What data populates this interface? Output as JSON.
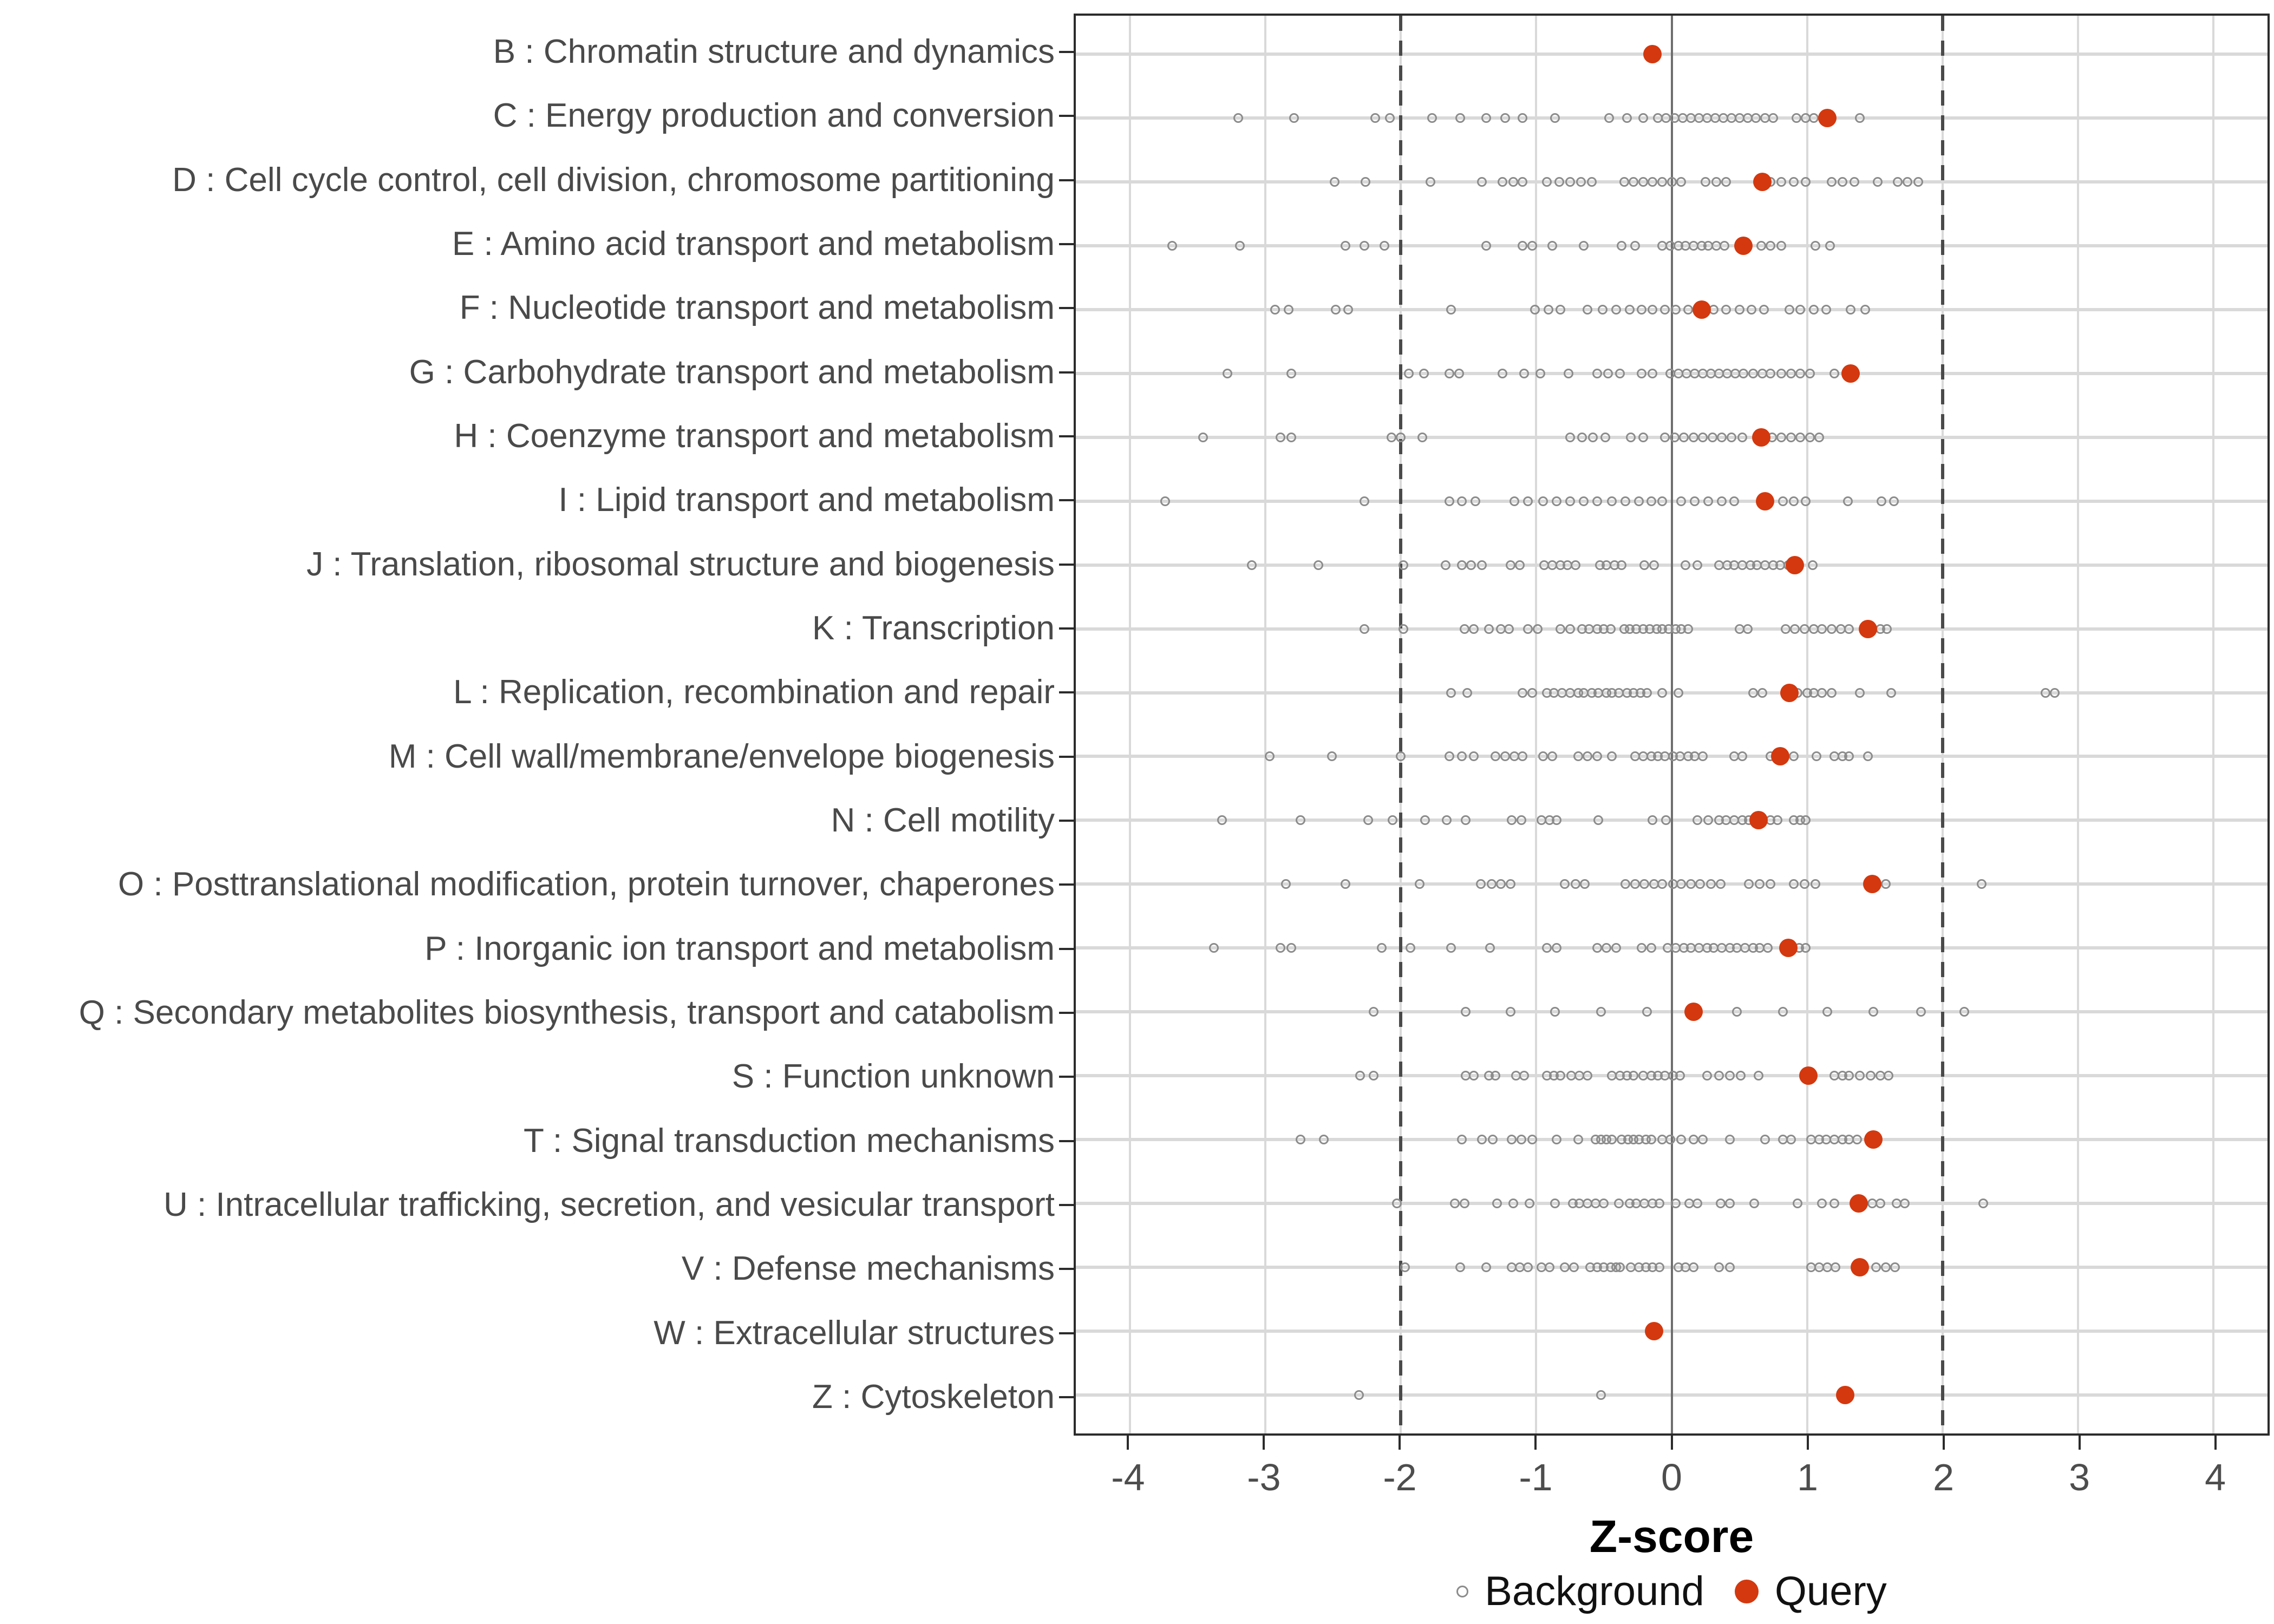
{
  "chart_data": {
    "type": "scatter",
    "title": "",
    "xlabel": "Z-score",
    "ylabel": "",
    "xlim": [
      -4.4,
      4.4
    ],
    "x_ticks": [
      -4,
      -3,
      -2,
      -1,
      0,
      1,
      2,
      3,
      4
    ],
    "guides": {
      "zero_line_at": 0,
      "dashed_lines_at": [
        -2,
        2
      ]
    },
    "grid": true,
    "legend_position": "bottom",
    "legend": [
      {
        "label": "Background",
        "marker": "open-circle",
        "color": "#8c8c8c"
      },
      {
        "label": "Query",
        "marker": "filled-circle",
        "color": "#d4380e"
      }
    ],
    "colors": {
      "query": "#d4380e",
      "background_stroke": "#8c8c8c",
      "grid_light": "#d9d9d9",
      "dashed_guide": "#4a4a4a",
      "zero_guide": "#6e6e6e",
      "axis": "#2b2b2b",
      "tick_text": "#4d4d4d",
      "category_text": "#4a4a4a"
    },
    "categories": [
      {
        "label": "B : Chromatin structure and dynamics",
        "query": -0.14,
        "background": []
      },
      {
        "label": "C : Energy production and conversion",
        "query": 1.15,
        "background": [
          -3.2,
          -2.79,
          -2.19,
          -2.08,
          -1.77,
          -1.56,
          -1.37,
          -1.23,
          -1.1,
          -0.86,
          -0.46,
          -0.33,
          -0.21,
          -0.1,
          -0.04,
          0.02,
          0.08,
          0.14,
          0.2,
          0.26,
          0.32,
          0.38,
          0.44,
          0.5,
          0.56,
          0.62,
          0.69,
          0.75,
          0.92,
          0.99,
          1.05,
          1.39
        ]
      },
      {
        "label": "D : Cell cycle control, cell division, chromosome partitioning",
        "query": 0.67,
        "background": [
          -2.49,
          -2.26,
          -1.78,
          -1.4,
          -1.25,
          -1.17,
          -1.1,
          -0.92,
          -0.83,
          -0.75,
          -0.67,
          -0.59,
          -0.35,
          -0.28,
          -0.21,
          -0.14,
          -0.07,
          0.0,
          0.07,
          0.25,
          0.33,
          0.4,
          0.73,
          0.81,
          0.9,
          0.99,
          1.18,
          1.26,
          1.35,
          1.52,
          1.67,
          1.74,
          1.82
        ]
      },
      {
        "label": "E : Amino acid transport and metabolism",
        "query": 0.53,
        "background": [
          -3.69,
          -3.19,
          -2.41,
          -2.27,
          -2.12,
          -1.37,
          -1.1,
          -1.03,
          -0.88,
          -0.65,
          -0.37,
          -0.27,
          -0.07,
          -0.01,
          0.05,
          0.1,
          0.16,
          0.22,
          0.27,
          0.33,
          0.39,
          0.66,
          0.73,
          0.81,
          1.06,
          1.17
        ]
      },
      {
        "label": "F : Nucleotide transport and metabolism",
        "query": 0.22,
        "background": [
          -2.93,
          -2.83,
          -2.48,
          -2.39,
          -1.63,
          -1.01,
          -0.91,
          -0.82,
          -0.62,
          -0.51,
          -0.41,
          -0.31,
          -0.22,
          -0.14,
          -0.05,
          0.03,
          0.12,
          0.31,
          0.4,
          0.5,
          0.59,
          0.68,
          0.87,
          0.95,
          1.05,
          1.14,
          1.32,
          1.43
        ]
      },
      {
        "label": "G : Carbohydrate transport and metabolism",
        "query": 1.32,
        "background": [
          -3.28,
          -2.81,
          -1.94,
          -1.83,
          -1.64,
          -1.57,
          -1.25,
          -1.09,
          -0.97,
          -0.76,
          -0.55,
          -0.47,
          -0.38,
          -0.22,
          -0.14,
          -0.01,
          0.05,
          0.11,
          0.17,
          0.23,
          0.29,
          0.35,
          0.41,
          0.47,
          0.53,
          0.6,
          0.67,
          0.73,
          0.81,
          0.88,
          0.95,
          1.02,
          1.2
        ]
      },
      {
        "label": "H : Coenzyme transport and metabolism",
        "query": 0.66,
        "background": [
          -3.46,
          -2.89,
          -2.81,
          -2.07,
          -2.0,
          -1.84,
          -0.75,
          -0.66,
          -0.58,
          -0.49,
          -0.3,
          -0.21,
          -0.05,
          0.02,
          0.09,
          0.16,
          0.23,
          0.3,
          0.37,
          0.44,
          0.52,
          0.74,
          0.81,
          0.88,
          0.95,
          1.02,
          1.09
        ]
      },
      {
        "label": "I : Lipid transport and metabolism",
        "query": 0.69,
        "background": [
          -3.74,
          -2.27,
          -1.64,
          -1.55,
          -1.45,
          -1.16,
          -1.06,
          -0.95,
          -0.85,
          -0.75,
          -0.65,
          -0.55,
          -0.44,
          -0.34,
          -0.24,
          -0.15,
          -0.07,
          0.07,
          0.17,
          0.27,
          0.37,
          0.46,
          0.82,
          0.9,
          0.99,
          1.3,
          1.55,
          1.64
        ]
      },
      {
        "label": "J : Translation, ribosomal structure and biogenesis",
        "query": 0.91,
        "background": [
          -3.1,
          -2.61,
          -1.98,
          -1.67,
          -1.55,
          -1.48,
          -1.4,
          -1.19,
          -1.12,
          -0.94,
          -0.88,
          -0.82,
          -0.77,
          -0.71,
          -0.53,
          -0.48,
          -0.42,
          -0.37,
          -0.2,
          -0.13,
          0.1,
          0.19,
          0.35,
          0.41,
          0.46,
          0.52,
          0.58,
          0.63,
          0.69,
          0.75,
          0.8,
          0.86,
          1.04
        ]
      },
      {
        "label": "K : Transcription",
        "query": 1.45,
        "background": [
          -2.27,
          -1.98,
          -1.53,
          -1.46,
          -1.35,
          -1.26,
          -1.2,
          -1.06,
          -0.99,
          -0.82,
          -0.75,
          -0.66,
          -0.61,
          -0.55,
          -0.5,
          -0.45,
          -0.35,
          -0.31,
          -0.26,
          -0.21,
          -0.16,
          -0.11,
          -0.07,
          -0.02,
          0.03,
          0.07,
          0.12,
          0.5,
          0.56,
          0.84,
          0.91,
          0.98,
          1.05,
          1.11,
          1.18,
          1.25,
          1.31,
          1.54,
          1.59
        ]
      },
      {
        "label": "L : Replication, recombination and repair",
        "query": 0.87,
        "background": [
          -1.63,
          -1.51,
          -1.1,
          -1.03,
          -0.92,
          -0.87,
          -0.81,
          -0.75,
          -0.69,
          -0.65,
          -0.59,
          -0.54,
          -0.48,
          -0.44,
          -0.39,
          -0.33,
          -0.28,
          -0.23,
          -0.18,
          -0.07,
          0.05,
          0.6,
          0.67,
          0.93,
          1.0,
          1.05,
          1.11,
          1.18,
          1.39,
          1.62,
          2.76,
          2.83
        ]
      },
      {
        "label": "M : Cell wall/membrane/envelope biogenesis",
        "query": 0.8,
        "background": [
          -2.97,
          -2.51,
          -2.0,
          -1.64,
          -1.55,
          -1.46,
          -1.3,
          -1.23,
          -1.16,
          -1.1,
          -0.95,
          -0.88,
          -0.69,
          -0.62,
          -0.55,
          -0.44,
          -0.27,
          -0.21,
          -0.15,
          -0.1,
          -0.05,
          0.01,
          0.06,
          0.12,
          0.17,
          0.23,
          0.46,
          0.52,
          0.73,
          0.79,
          0.9,
          1.07,
          1.2,
          1.26,
          1.31,
          1.45
        ]
      },
      {
        "label": "N : Cell motility",
        "query": 0.64,
        "background": [
          -3.32,
          -2.74,
          -2.24,
          -2.06,
          -1.82,
          -1.66,
          -1.52,
          -1.18,
          -1.11,
          -0.96,
          -0.9,
          -0.85,
          -0.54,
          -0.14,
          -0.04,
          0.19,
          0.27,
          0.35,
          0.4,
          0.46,
          0.52,
          0.57,
          0.73,
          0.78,
          0.9,
          0.95,
          0.99
        ]
      },
      {
        "label": "O : Posttranslational modification, protein turnover, chaperones",
        "query": 1.48,
        "background": [
          -2.85,
          -2.41,
          -1.86,
          -1.41,
          -1.33,
          -1.26,
          -1.19,
          -0.79,
          -0.71,
          -0.64,
          -0.34,
          -0.27,
          -0.2,
          -0.13,
          -0.07,
          0.01,
          0.07,
          0.14,
          0.21,
          0.29,
          0.36,
          0.57,
          0.65,
          0.73,
          0.9,
          0.98,
          1.06,
          1.58,
          2.29
        ]
      },
      {
        "label": "P : Inorganic ion transport and metabolism",
        "query": 0.86,
        "background": [
          -3.38,
          -2.89,
          -2.81,
          -2.14,
          -1.93,
          -1.63,
          -1.34,
          -0.92,
          -0.85,
          -0.55,
          -0.48,
          -0.41,
          -0.22,
          -0.15,
          -0.03,
          0.03,
          0.09,
          0.14,
          0.2,
          0.26,
          0.31,
          0.37,
          0.43,
          0.48,
          0.54,
          0.6,
          0.65,
          0.71,
          0.94,
          0.99
        ]
      },
      {
        "label": "Q : Secondary metabolites biosynthesis, transport and catabolism",
        "query": 0.16,
        "background": [
          -2.2,
          -1.52,
          -1.19,
          -0.86,
          -0.52,
          -0.18,
          0.48,
          0.82,
          1.15,
          1.49,
          1.84,
          2.16
        ]
      },
      {
        "label": "S : Function unknown",
        "query": 1.01,
        "background": [
          -2.3,
          -2.2,
          -1.52,
          -1.46,
          -1.35,
          -1.3,
          -1.15,
          -1.09,
          -0.92,
          -0.87,
          -0.82,
          -0.74,
          -0.68,
          -0.62,
          -0.44,
          -0.38,
          -0.33,
          -0.28,
          -0.21,
          -0.15,
          -0.1,
          -0.05,
          0.01,
          0.06,
          0.26,
          0.35,
          0.43,
          0.51,
          0.64,
          1.2,
          1.26,
          1.31,
          1.39,
          1.47,
          1.54,
          1.6
        ]
      },
      {
        "label": "T : Signal transduction mechanisms",
        "query": 1.49,
        "background": [
          -2.74,
          -2.57,
          -1.55,
          -1.4,
          -1.32,
          -1.18,
          -1.11,
          -1.03,
          -0.85,
          -0.69,
          -0.56,
          -0.52,
          -0.48,
          -0.44,
          -0.37,
          -0.32,
          -0.28,
          -0.24,
          -0.19,
          -0.15,
          -0.07,
          -0.01,
          0.07,
          0.16,
          0.23,
          0.43,
          0.69,
          0.82,
          0.88,
          1.03,
          1.09,
          1.14,
          1.2,
          1.26,
          1.31,
          1.37
        ]
      },
      {
        "label": "U : Intracellular trafficking, secretion, and vesicular transport",
        "query": 1.38,
        "background": [
          -2.03,
          -1.6,
          -1.53,
          -1.29,
          -1.17,
          -1.05,
          -0.86,
          -0.73,
          -0.68,
          -0.62,
          -0.56,
          -0.5,
          -0.39,
          -0.31,
          -0.26,
          -0.2,
          -0.14,
          -0.09,
          0.03,
          0.13,
          0.19,
          0.36,
          0.43,
          0.61,
          0.93,
          1.11,
          1.2,
          1.48,
          1.54,
          1.66,
          1.72,
          2.3
        ]
      },
      {
        "label": "V : Defense mechanisms",
        "query": 1.39,
        "background": [
          -1.97,
          -1.56,
          -1.37,
          -1.18,
          -1.12,
          -1.06,
          -0.96,
          -0.9,
          -0.79,
          -0.72,
          -0.6,
          -0.55,
          -0.5,
          -0.45,
          -0.41,
          -0.38,
          -0.3,
          -0.24,
          -0.19,
          -0.14,
          -0.09,
          0.05,
          0.1,
          0.16,
          0.35,
          0.43,
          1.03,
          1.09,
          1.15,
          1.21,
          1.51,
          1.58,
          1.65
        ]
      },
      {
        "label": "W : Extracellular structures",
        "query": -0.13,
        "background": []
      },
      {
        "label": "Z : Cytoskeleton",
        "query": 1.28,
        "background": [
          -2.31,
          -0.52
        ]
      }
    ]
  }
}
